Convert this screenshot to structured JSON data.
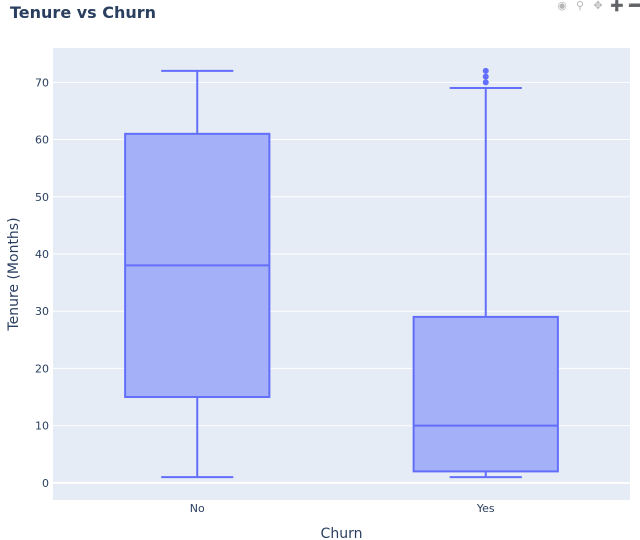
{
  "chart_data": {
    "type": "box",
    "title": "Tenure vs Churn",
    "xlabel": "Churn",
    "ylabel": "Tenure (Months)",
    "categories": [
      "No",
      "Yes"
    ],
    "boxes": [
      {
        "category": "No",
        "min": 1,
        "q1": 15,
        "median": 38,
        "q3": 61,
        "max": 72,
        "outliers": []
      },
      {
        "category": "Yes",
        "min": 1,
        "q1": 2,
        "median": 10,
        "q3": 29,
        "max": 69,
        "outliers": [
          70,
          71,
          72
        ]
      }
    ],
    "ylim": [
      -3,
      76
    ],
    "yticks": [
      0,
      10,
      20,
      30,
      40,
      50,
      60,
      70
    ],
    "grid": true,
    "colors": {
      "box_fill": "#a4b0f8",
      "box_line": "#636efa",
      "plot_bg": "#e5ecf6",
      "grid": "#ffffff",
      "text": "#2a3f5f"
    }
  },
  "modebar": {
    "icons": [
      "camera-icon",
      "zoom-icon",
      "pan-icon",
      "zoom-in-icon",
      "zoom-out-icon"
    ]
  }
}
